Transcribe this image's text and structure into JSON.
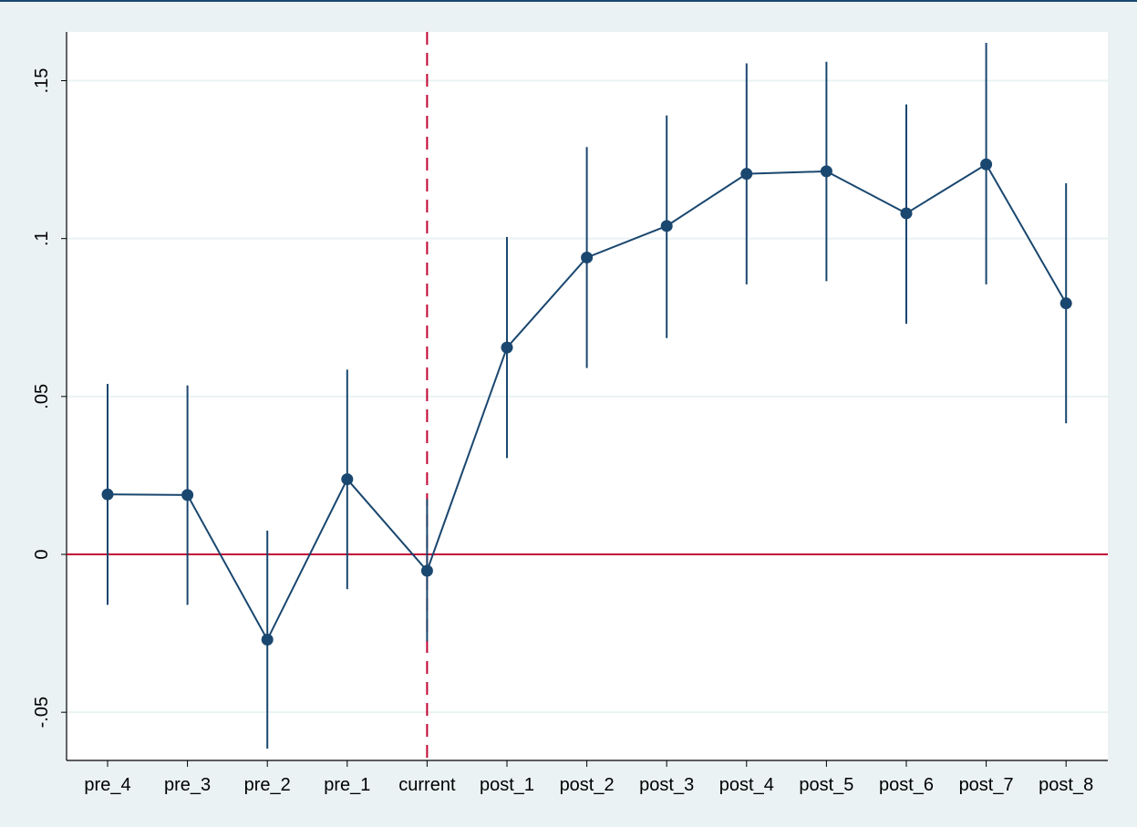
{
  "chart_data": {
    "type": "line",
    "title": "",
    "xlabel": "",
    "ylabel": "",
    "categories": [
      "pre_4",
      "pre_3",
      "pre_2",
      "pre_1",
      "current",
      "post_1",
      "post_2",
      "post_3",
      "post_4",
      "post_5",
      "post_6",
      "post_7",
      "post_8"
    ],
    "series": [
      {
        "values": [
          0.019,
          0.0188,
          -0.027,
          0.0238,
          -0.0052,
          0.0655,
          0.094,
          0.104,
          0.1205,
          0.1213,
          0.108,
          0.1235,
          0.0795
        ],
        "ci_lower": [
          -0.016,
          -0.016,
          -0.0615,
          -0.011,
          -0.0275,
          0.0305,
          0.059,
          0.0685,
          0.0855,
          0.0865,
          0.073,
          0.0855,
          0.0415
        ],
        "ci_upper": [
          0.054,
          0.0535,
          0.0075,
          0.0585,
          0.0175,
          0.1005,
          0.129,
          0.139,
          0.1555,
          0.156,
          0.1425,
          0.162,
          0.1175
        ]
      }
    ],
    "ylim": [
      -0.065,
      0.163
    ],
    "yticks": [
      -0.05,
      0,
      0.05,
      0.1,
      0.15
    ],
    "ytick_labels": [
      "-.05",
      "0",
      ".05",
      ".1",
      ".15"
    ],
    "reference_lines": {
      "horizontal_y": 0,
      "vertical_at_category": "current"
    },
    "grid": true,
    "colors": {
      "series": "#1a476f",
      "reference": "#c10534",
      "background": "#eaf2f3",
      "plot_area": "#ffffff",
      "grid": "#eaf2f3"
    }
  }
}
